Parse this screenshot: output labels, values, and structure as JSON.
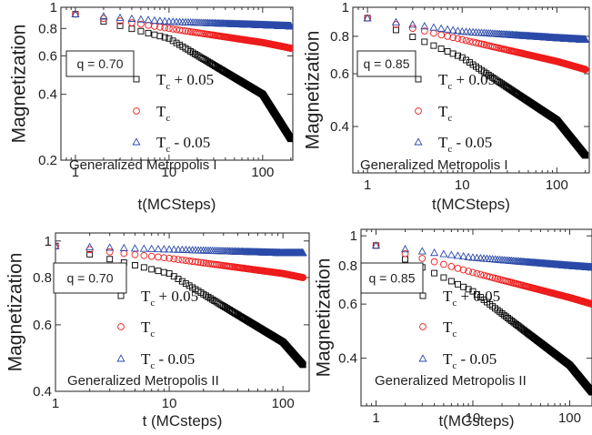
{
  "chart_data": [
    {
      "type": "scatter",
      "q_label": "q = 0.70",
      "annotation": "Generalized Metropolis I",
      "xlabel": "t(MCSteps)",
      "ylabel": "Magnetization",
      "xscale": "log",
      "yscale": "log",
      "xlim": [
        0.7,
        210
      ],
      "ylim": [
        0.2,
        1.0
      ],
      "xticks": [
        {
          "v": 1,
          "t": "1"
        },
        {
          "v": 10,
          "t": "10"
        },
        {
          "v": 100,
          "t": "100"
        }
      ],
      "yticks": [
        {
          "v": 0.2,
          "t": "0.2"
        },
        {
          "v": 0.4,
          "t": "0.4"
        },
        {
          "v": 0.6,
          "t": "0.6"
        },
        {
          "v": 0.8,
          "t": "0.8"
        },
        {
          "v": 1,
          "t": "1"
        }
      ],
      "tmax": 200,
      "legend_position": "center-right",
      "series": [
        {
          "base": "T",
          "sub": "c",
          "suffix": "+ 0.05",
          "marker": "square",
          "color": "#000000",
          "y1": 0.93,
          "y10": 0.72,
          "y100": 0.4,
          "yend": 0.25
        },
        {
          "base": "T",
          "sub": "c",
          "suffix": "",
          "marker": "circle",
          "color": "#ee1c1c",
          "y1": 0.93,
          "y10": 0.8,
          "y100": 0.69,
          "yend": 0.65
        },
        {
          "base": "T",
          "sub": "c",
          "suffix": "- 0.05",
          "marker": "triangle",
          "color": "#2b4aa8",
          "y1": 0.93,
          "y10": 0.86,
          "y100": 0.83,
          "yend": 0.82
        }
      ]
    },
    {
      "type": "scatter",
      "q_label": "q = 0.85",
      "annotation": "Generalized Metropolis I",
      "xlabel": "t(MCSteps)",
      "ylabel": "Magnetization",
      "xscale": "log",
      "yscale": "log",
      "xlim": [
        0.7,
        220
      ],
      "ylim": [
        0.28,
        1.0
      ],
      "xticks": [
        {
          "v": 1,
          "t": "1"
        },
        {
          "v": 10,
          "t": "10"
        },
        {
          "v": 100,
          "t": "100"
        }
      ],
      "yticks": [
        {
          "v": 0.4,
          "t": "0.4"
        },
        {
          "v": 0.6,
          "t": "0.6"
        },
        {
          "v": 0.8,
          "t": "0.8"
        },
        {
          "v": 1,
          "t": "1"
        }
      ],
      "tmax": 200,
      "legend_position": "center-right",
      "series": [
        {
          "base": "T",
          "sub": "c",
          "suffix": "+ 0.05",
          "marker": "square",
          "color": "#000000",
          "y1": 0.92,
          "y10": 0.68,
          "y100": 0.42,
          "yend": 0.32
        },
        {
          "base": "T",
          "sub": "c",
          "suffix": "",
          "marker": "circle",
          "color": "#ee1c1c",
          "y1": 0.92,
          "y10": 0.78,
          "y100": 0.66,
          "yend": 0.62
        },
        {
          "base": "T",
          "sub": "c",
          "suffix": "- 0.05",
          "marker": "triangle",
          "color": "#2b4aa8",
          "y1": 0.92,
          "y10": 0.83,
          "y100": 0.79,
          "yend": 0.78
        }
      ]
    },
    {
      "type": "scatter",
      "q_label": "q = 0.70",
      "annotation": "Generalized Metropolis II",
      "xlabel": "t (MCsteps)",
      "ylabel": "Magnetization",
      "xscale": "log",
      "yscale": "log",
      "xlim": [
        1,
        170
      ],
      "ylim": [
        0.4,
        1.05
      ],
      "xticks": [
        {
          "v": 1,
          "t": "1"
        },
        {
          "v": 10,
          "t": "10"
        },
        {
          "v": 100,
          "t": "100"
        }
      ],
      "yticks": [
        {
          "v": 0.4,
          "t": "0.4"
        },
        {
          "v": 0.6,
          "t": "0.6"
        },
        {
          "v": 0.8,
          "t": "0.8"
        },
        {
          "v": 1,
          "t": "1"
        }
      ],
      "tmax": 150,
      "legend_position": "center-right",
      "series": [
        {
          "base": "T",
          "sub": "c",
          "suffix": "+ 0.05",
          "marker": "square",
          "color": "#000000",
          "y1": 0.97,
          "y10": 0.82,
          "y100": 0.54,
          "yend": 0.47
        },
        {
          "base": "T",
          "sub": "c",
          "suffix": "",
          "marker": "circle",
          "color": "#ee1c1c",
          "y1": 0.97,
          "y10": 0.9,
          "y100": 0.82,
          "yend": 0.8
        },
        {
          "base": "T",
          "sub": "c",
          "suffix": "- 0.05",
          "marker": "triangle",
          "color": "#2b4aa8",
          "y1": 0.97,
          "y10": 0.95,
          "y100": 0.93,
          "yend": 0.93
        }
      ]
    },
    {
      "type": "scatter",
      "q_label": "q = 0.85",
      "annotation": "Generalized Metropolis II",
      "xlabel": "t(MCsteps)",
      "ylabel": "Magnetization",
      "xscale": "log",
      "yscale": "log",
      "xlim": [
        0.7,
        170
      ],
      "ylim": [
        0.28,
        1.05
      ],
      "xticks": [
        {
          "v": 1,
          "t": "1"
        },
        {
          "v": 10,
          "t": "10"
        },
        {
          "v": 100,
          "t": "100"
        }
      ],
      "yticks": [
        {
          "v": 0.4,
          "t": "0.4"
        },
        {
          "v": 0.6,
          "t": "0.6"
        },
        {
          "v": 0.8,
          "t": "0.8"
        },
        {
          "v": 1,
          "t": "1"
        }
      ],
      "tmax": 170,
      "legend_position": "center-right",
      "series": [
        {
          "base": "T",
          "sub": "c",
          "suffix": "+ 0.05",
          "marker": "square",
          "color": "#000000",
          "y1": 0.93,
          "y10": 0.66,
          "y100": 0.38,
          "yend": 0.31
        },
        {
          "base": "T",
          "sub": "c",
          "suffix": "",
          "marker": "circle",
          "color": "#ee1c1c",
          "y1": 0.93,
          "y10": 0.76,
          "y100": 0.63,
          "yend": 0.6
        },
        {
          "base": "T",
          "sub": "c",
          "suffix": "- 0.05",
          "marker": "triangle",
          "color": "#2b4aa8",
          "y1": 0.93,
          "y10": 0.85,
          "y100": 0.8,
          "yend": 0.79
        }
      ]
    }
  ]
}
